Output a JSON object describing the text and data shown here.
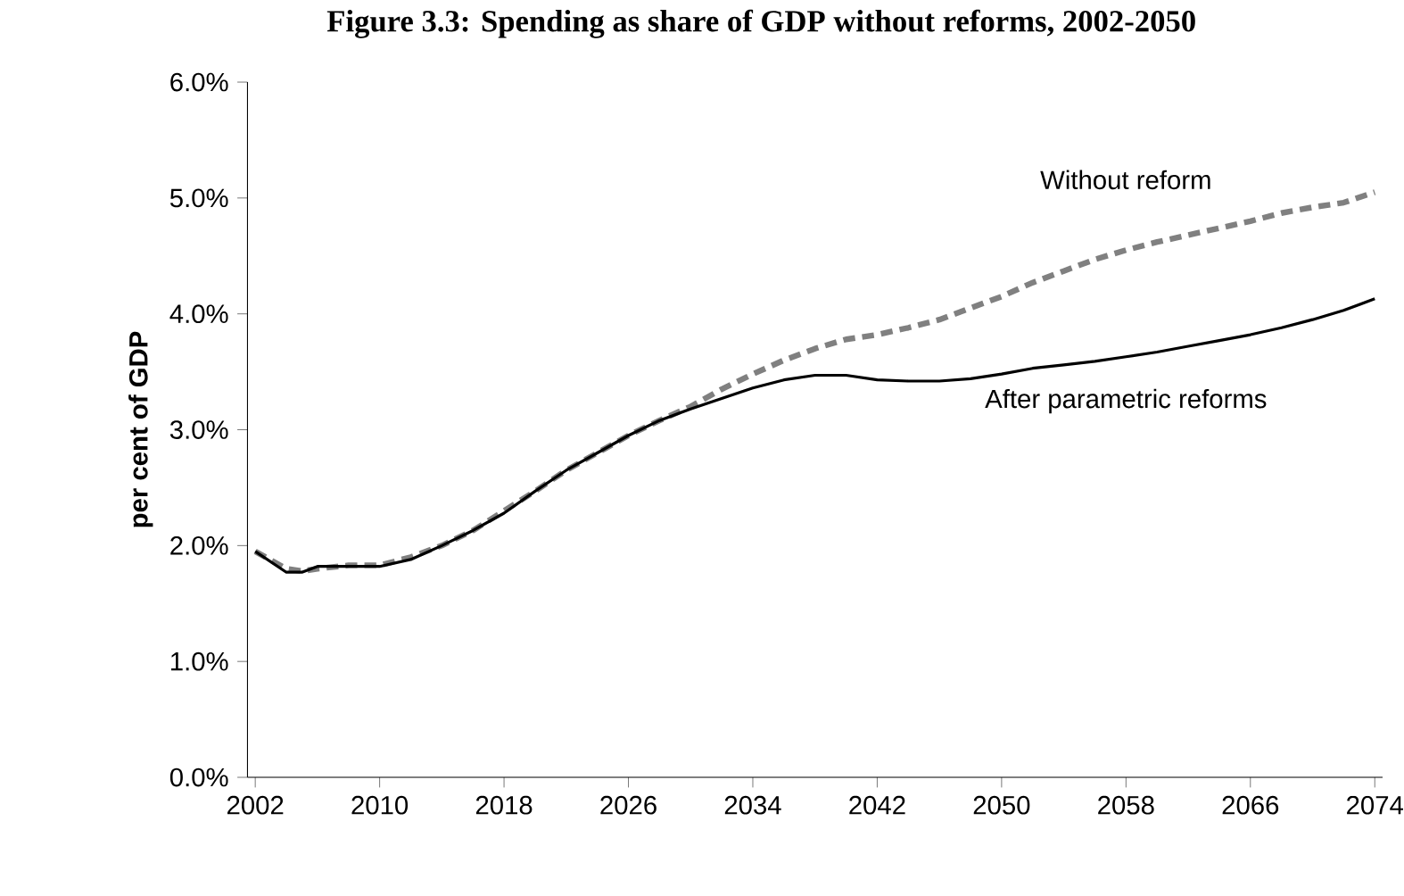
{
  "chart_data": {
    "type": "line",
    "title": "Figure 3.3: Spending as share of GDP without reforms, 2002-2050",
    "ylabel": "per cent of GDP",
    "x": [
      2002,
      2004,
      2005,
      2006,
      2008,
      2010,
      2012,
      2014,
      2016,
      2018,
      2020,
      2022,
      2024,
      2026,
      2028,
      2030,
      2032,
      2034,
      2036,
      2038,
      2040,
      2042,
      2044,
      2046,
      2048,
      2050,
      2052,
      2054,
      2056,
      2058,
      2060,
      2062,
      2064,
      2066,
      2068,
      2070,
      2072,
      2074
    ],
    "series": [
      {
        "name": "Without reform",
        "color": "#808080",
        "line_style": "dashed",
        "values": [
          1.95,
          1.8,
          1.78,
          1.8,
          1.83,
          1.83,
          1.9,
          2.0,
          2.13,
          2.3,
          2.47,
          2.65,
          2.8,
          2.95,
          3.08,
          3.2,
          3.35,
          3.48,
          3.6,
          3.7,
          3.78,
          3.82,
          3.88,
          3.95,
          4.05,
          4.15,
          4.27,
          4.37,
          4.47,
          4.55,
          4.62,
          4.68,
          4.74,
          4.8,
          4.87,
          4.92,
          4.96,
          5.05
        ]
      },
      {
        "name": "After parametric reforms",
        "color": "#000000",
        "line_style": "solid",
        "values": [
          1.95,
          1.77,
          1.77,
          1.82,
          1.82,
          1.82,
          1.88,
          2.0,
          2.13,
          2.28,
          2.47,
          2.65,
          2.8,
          2.95,
          3.08,
          3.18,
          3.27,
          3.36,
          3.43,
          3.47,
          3.47,
          3.43,
          3.42,
          3.42,
          3.44,
          3.48,
          3.53,
          3.56,
          3.59,
          3.63,
          3.67,
          3.72,
          3.77,
          3.82,
          3.88,
          3.95,
          4.03,
          4.13
        ]
      }
    ],
    "xlim": [
      2001.5,
      2074.5
    ],
    "xticks": [
      2002,
      2010,
      2018,
      2026,
      2034,
      2042,
      2050,
      2058,
      2066,
      2074
    ],
    "ylim": [
      0,
      6
    ],
    "yticks": [
      {
        "value": 0,
        "label": "0.0%"
      },
      {
        "value": 1,
        "label": "1.0%"
      },
      {
        "value": 2,
        "label": "2.0%"
      },
      {
        "value": 3,
        "label": "3.0%"
      },
      {
        "value": 4,
        "label": "4.0%"
      },
      {
        "value": 5,
        "label": "5.0%"
      },
      {
        "value": 6,
        "label": "6.0%"
      }
    ],
    "grid": false,
    "legend": false
  }
}
